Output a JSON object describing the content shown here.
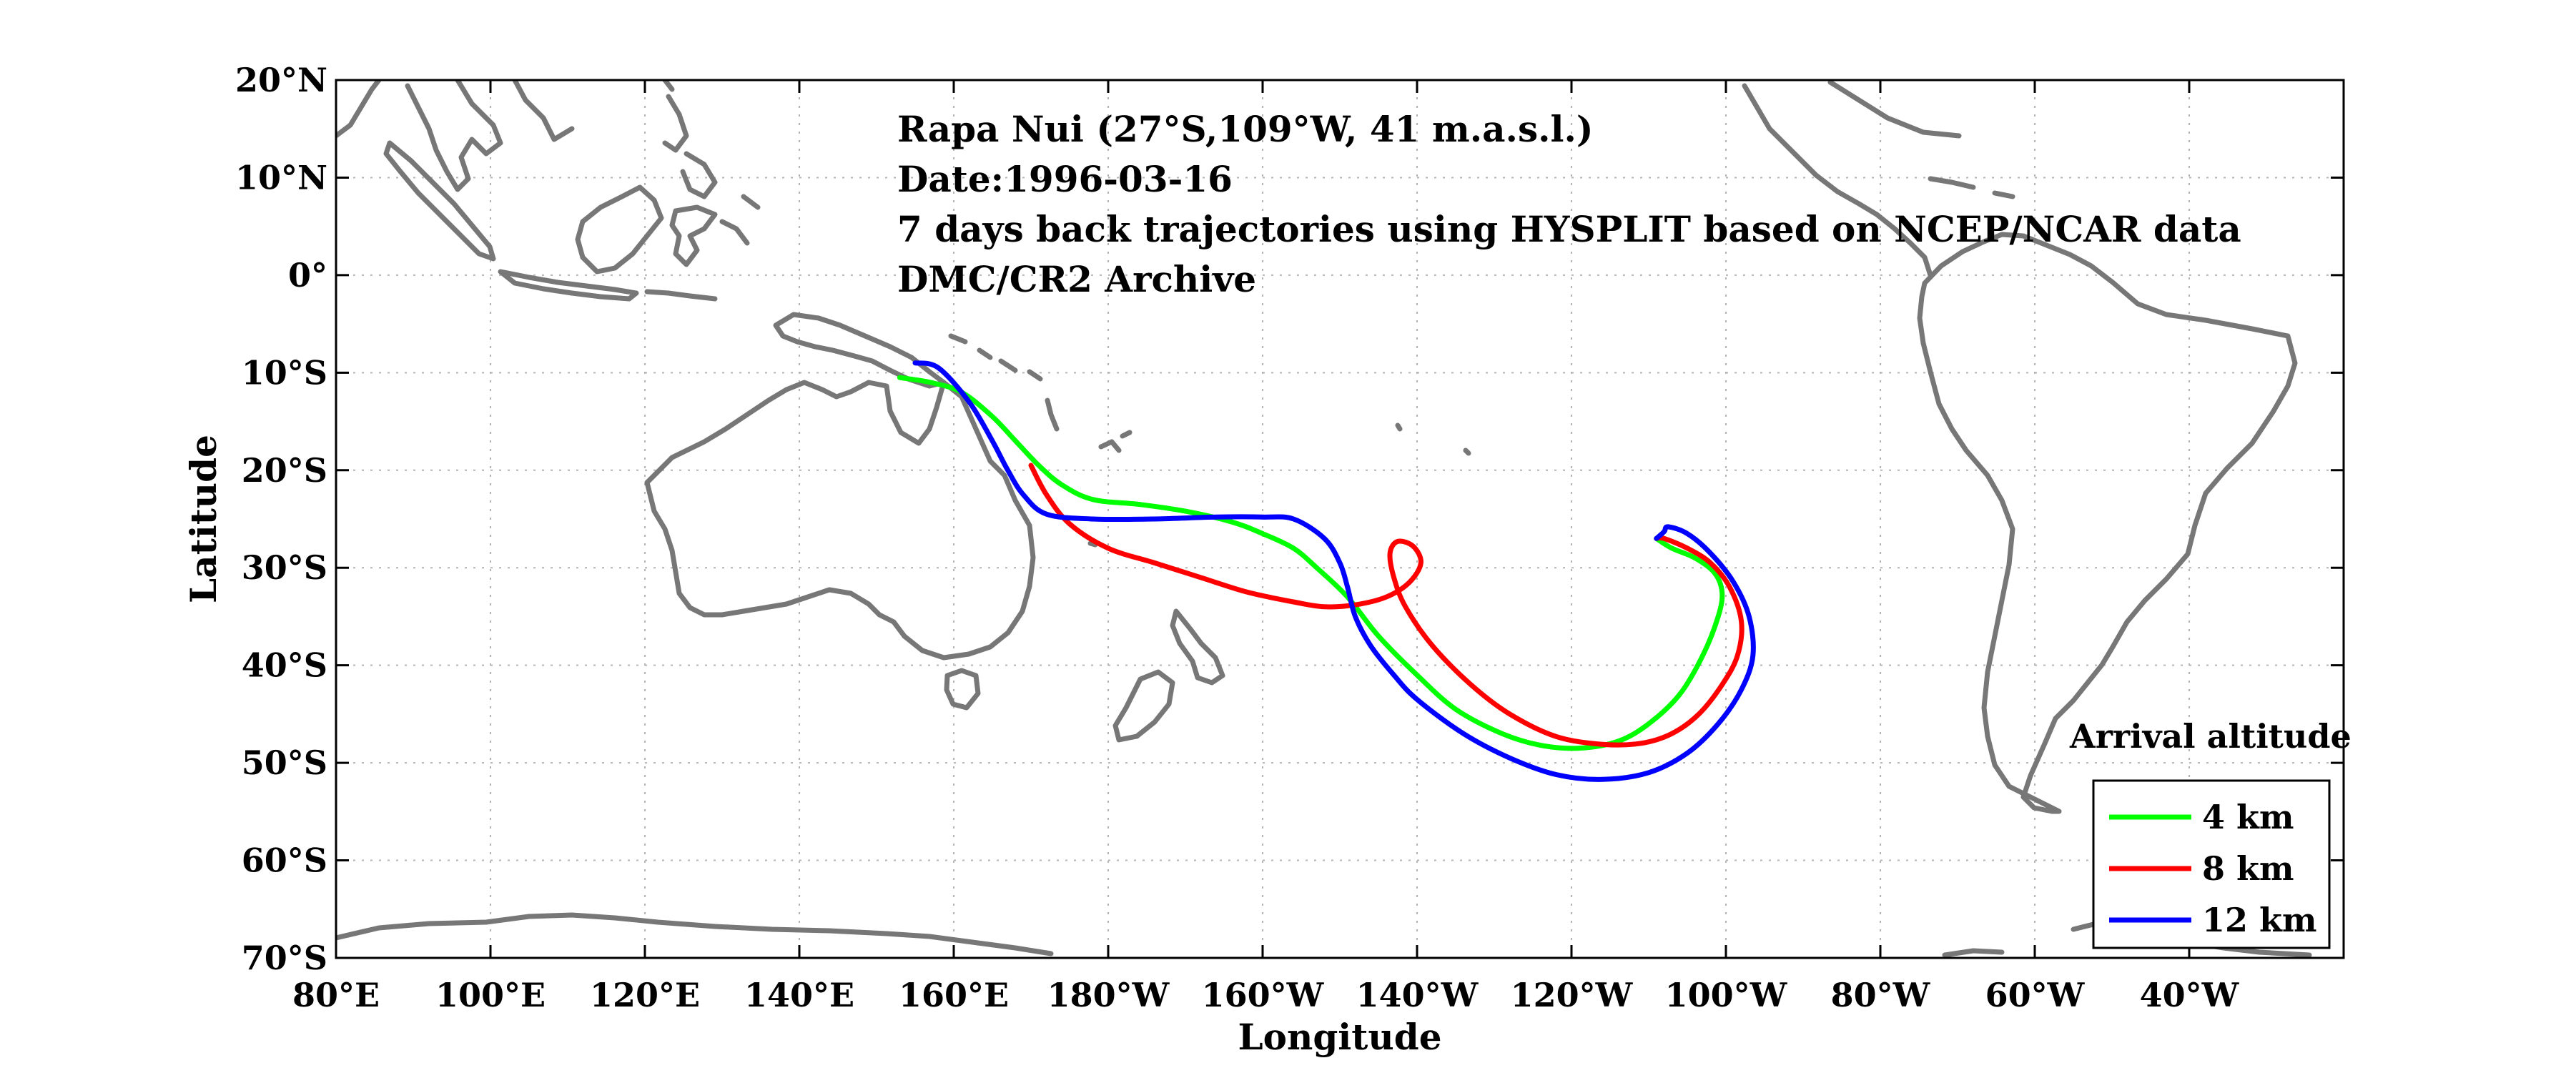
{
  "annotation": {
    "line1": "Rapa Nui (27°S,109°W, 41 m.a.s.l.)",
    "line2": "Date:1996-03-16",
    "line3": "7 days back trajectories using HYSPLIT based on NCEP/NCAR data",
    "line4": "DMC/CR2 Archive"
  },
  "axes": {
    "xlabel": "Longitude",
    "ylabel": "Latitude",
    "xlim": [
      80,
      340
    ],
    "ylim": [
      -70,
      20
    ],
    "xticks": [
      80,
      100,
      120,
      140,
      160,
      180,
      200,
      220,
      240,
      260,
      280,
      300,
      320
    ],
    "xtick_labels": [
      "80°E",
      "100°E",
      "120°E",
      "140°E",
      "160°E",
      "180°W",
      "160°W",
      "140°W",
      "120°W",
      "100°W",
      "80°W",
      "60°W",
      "40°W"
    ],
    "yticks": [
      20,
      10,
      0,
      -10,
      -20,
      -30,
      -40,
      -50,
      -60,
      -70
    ],
    "ytick_labels": [
      "20°N",
      "10°N",
      "0°",
      "10°S",
      "20°S",
      "30°S",
      "40°S",
      "50°S",
      "60°S",
      "70°S"
    ],
    "grid": true
  },
  "legend": {
    "title": "Arrival altitude",
    "placement": "lower-right",
    "entries": [
      {
        "label": "4 km",
        "color": "#00ff00"
      },
      {
        "label": "8 km",
        "color": "#ff0000"
      },
      {
        "label": "12 km",
        "color": "#0000ff"
      }
    ]
  },
  "chart_data": {
    "type": "line",
    "title": "Rapa Nui (27°S,109°W, 41 m.a.s.l.)",
    "xlabel": "Longitude",
    "ylabel": "Latitude",
    "xlim": [
      80,
      340
    ],
    "ylim": [
      -70,
      20
    ],
    "arrival_point": {
      "lon": 251,
      "lat": -27
    },
    "series": [
      {
        "name": "4 km",
        "color": "#00ff00",
        "lon": [
          153,
          157,
          161,
          165,
          168,
          171,
          174,
          178,
          184,
          190,
          196,
          200,
          204,
          207,
          211,
          215,
          220,
          225,
          231,
          236,
          241,
          246,
          250,
          254,
          257,
          259,
          259.5,
          258.5,
          256,
          253,
          251
        ],
        "lat": [
          -10.5,
          -11,
          -12,
          -14.5,
          -17,
          -19.5,
          -21.5,
          -23,
          -23.5,
          -24.2,
          -25.3,
          -26.5,
          -28,
          -30,
          -33,
          -37,
          -41,
          -44.5,
          -47,
          -48.2,
          -48.5,
          -47.8,
          -46,
          -43,
          -39,
          -35,
          -32.5,
          -30.5,
          -29,
          -28,
          -27
        ]
      },
      {
        "name": "8 km",
        "color": "#ff0000",
        "lon": [
          170,
          172,
          175,
          180,
          186,
          192,
          198,
          204,
          208,
          212,
          216,
          219,
          220.5,
          219.5,
          217.5,
          216.5,
          217,
          218.5,
          222,
          227,
          232,
          238,
          244,
          249,
          253,
          256.5,
          259.5,
          261.5,
          262,
          260.5,
          258,
          255,
          252,
          251
        ],
        "lat": [
          -19.5,
          -22.5,
          -25.5,
          -28,
          -29.5,
          -31,
          -32.5,
          -33.5,
          -34,
          -33.8,
          -33,
          -31.5,
          -29.5,
          -27.8,
          -27.3,
          -28.5,
          -31,
          -34,
          -38,
          -42,
          -45,
          -47.3,
          -48.1,
          -48,
          -47,
          -45,
          -42,
          -39,
          -35.5,
          -32,
          -29.5,
          -28,
          -27,
          -27
        ]
      },
      {
        "name": "12 km",
        "color": "#0000ff",
        "lon": [
          155,
          158,
          162,
          165,
          167,
          169,
          172,
          178,
          186,
          194,
          200,
          204,
          208,
          210,
          211,
          212,
          214,
          217,
          220,
          226,
          232,
          238,
          244,
          250,
          255,
          259,
          262,
          263.5,
          263,
          261,
          258,
          255,
          252.5,
          252,
          251
        ],
        "lat": [
          -9,
          -9.5,
          -13,
          -17,
          -20,
          -22.5,
          -24.5,
          -25,
          -25,
          -24.8,
          -24.8,
          -25,
          -27,
          -29.5,
          -32,
          -35,
          -38,
          -41,
          -43.5,
          -47,
          -49.5,
          -51.2,
          -51.7,
          -51,
          -49,
          -46,
          -42.5,
          -39,
          -35,
          -31.5,
          -28.5,
          -26.5,
          -25.8,
          -26.3,
          -27
        ]
      }
    ]
  }
}
